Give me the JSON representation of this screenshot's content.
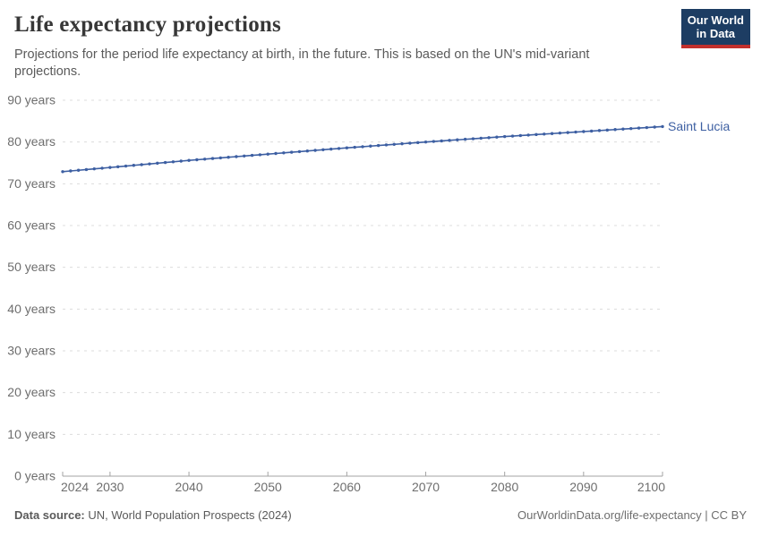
{
  "header": {
    "title": "Life expectancy projections",
    "subtitle": "Projections for the period life expectancy at birth, in the future. This is based on the UN's mid-variant projections.",
    "logo": {
      "line1": "Our World",
      "line2": "in Data",
      "bg_color": "#1d3d63",
      "accent_color": "#c2302d"
    }
  },
  "footer": {
    "source_label": "Data source:",
    "source_text": " UN, World Population Prospects (2024)",
    "right_text": "OurWorldinData.org/life-expectancy | CC BY"
  },
  "chart_data": {
    "type": "line",
    "title": "Life expectancy projections",
    "xlabel": "",
    "ylabel": "",
    "xlim": [
      2024,
      2100
    ],
    "ylim": [
      0,
      90
    ],
    "x_ticks": [
      2024,
      2030,
      2040,
      2050,
      2060,
      2070,
      2080,
      2090,
      2100
    ],
    "y_ticks": [
      0,
      10,
      20,
      30,
      40,
      50,
      60,
      70,
      80,
      90
    ],
    "y_tick_suffix": " years",
    "grid": "horizontal-dashed",
    "legend_position": "end-of-line-label",
    "colors": {
      "grid": "#dcdcdc",
      "axis": "#a3a3a3",
      "axis_text": "#6e6e6e"
    },
    "series": [
      {
        "name": "Saint Lucia",
        "color": "#3d5fa2",
        "x": [
          2024,
          2025,
          2026,
          2027,
          2028,
          2029,
          2030,
          2031,
          2032,
          2033,
          2034,
          2035,
          2036,
          2037,
          2038,
          2039,
          2040,
          2041,
          2042,
          2043,
          2044,
          2045,
          2046,
          2047,
          2048,
          2049,
          2050,
          2051,
          2052,
          2053,
          2054,
          2055,
          2056,
          2057,
          2058,
          2059,
          2060,
          2061,
          2062,
          2063,
          2064,
          2065,
          2066,
          2067,
          2068,
          2069,
          2070,
          2071,
          2072,
          2073,
          2074,
          2075,
          2076,
          2077,
          2078,
          2079,
          2080,
          2081,
          2082,
          2083,
          2084,
          2085,
          2086,
          2087,
          2088,
          2089,
          2090,
          2091,
          2092,
          2093,
          2094,
          2095,
          2096,
          2097,
          2098,
          2099,
          2100
        ],
        "values": [
          72.9,
          73.07,
          73.23,
          73.4,
          73.57,
          73.73,
          73.9,
          74.07,
          74.24,
          74.41,
          74.58,
          74.75,
          74.92,
          75.09,
          75.26,
          75.43,
          75.6,
          75.75,
          75.9,
          76.05,
          76.2,
          76.35,
          76.5,
          76.65,
          76.8,
          76.95,
          77.1,
          77.25,
          77.4,
          77.55,
          77.7,
          77.85,
          78.0,
          78.15,
          78.3,
          78.45,
          78.6,
          78.74,
          78.88,
          79.02,
          79.16,
          79.3,
          79.44,
          79.58,
          79.72,
          79.86,
          80.0,
          80.13,
          80.26,
          80.39,
          80.52,
          80.65,
          80.78,
          80.91,
          81.04,
          81.17,
          81.3,
          81.42,
          81.54,
          81.66,
          81.78,
          81.9,
          82.02,
          82.14,
          82.26,
          82.38,
          82.5,
          82.62,
          82.74,
          82.86,
          82.98,
          83.1,
          83.22,
          83.34,
          83.46,
          83.58,
          83.7
        ]
      }
    ]
  }
}
